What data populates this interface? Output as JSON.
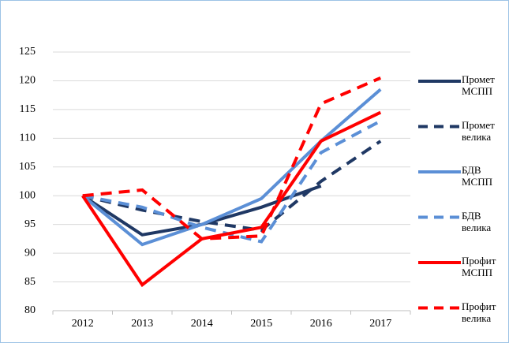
{
  "chart_data": {
    "type": "line",
    "categories": [
      "2012",
      "2013",
      "2014",
      "2015",
      "2016",
      "2017"
    ],
    "series": [
      {
        "name": "Промет МСПП",
        "color": "#1f3864",
        "dash": false,
        "values": [
          100,
          93.2,
          95,
          98,
          101.7,
          null
        ]
      },
      {
        "name": "Промет велика",
        "color": "#1f3864",
        "dash": true,
        "values": [
          100,
          97.5,
          95.5,
          94,
          102.5,
          109.5
        ]
      },
      {
        "name": "БДВ МСПП",
        "color": "#5b8fd6",
        "dash": false,
        "values": [
          100,
          91.5,
          95,
          99.5,
          109.5,
          118.5
        ]
      },
      {
        "name": "БДВ велика",
        "color": "#5b8fd6",
        "dash": true,
        "values": [
          100,
          98,
          94.5,
          92,
          107.5,
          113
        ]
      },
      {
        "name": "Профит МСПП",
        "color": "#ff0000",
        "dash": false,
        "values": [
          100,
          84.5,
          92.5,
          94.5,
          109.5,
          114.5
        ]
      },
      {
        "name": "Профит велика",
        "color": "#ff0000",
        "dash": true,
        "values": [
          100,
          101,
          92.5,
          93,
          116,
          120.5
        ]
      }
    ],
    "ylim": [
      80,
      125
    ],
    "yticks": [
      80,
      85,
      90,
      95,
      100,
      105,
      110,
      115,
      120,
      125
    ],
    "grid": true
  }
}
